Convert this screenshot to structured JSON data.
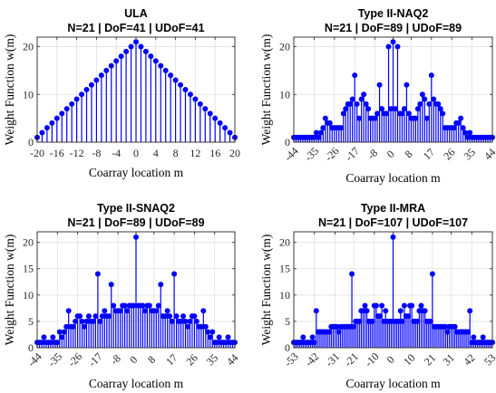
{
  "colors": {
    "stem": "#0000ff",
    "axis": "#262626",
    "grid": "#e0e0e0"
  },
  "chart_data": [
    {
      "type": "stem",
      "title": "ULA",
      "subtitle": "N=21 | DoF=41 | UDoF=41",
      "xlabel": "Coarray location m",
      "ylabel": "Weight Function w(m)",
      "xlim": [
        -20,
        20
      ],
      "ylim": [
        0,
        22
      ],
      "xticks": [
        -20,
        -16,
        -12,
        -8,
        -4,
        0,
        4,
        8,
        12,
        16,
        20
      ],
      "yticks": [
        0,
        10,
        20
      ],
      "grid": true,
      "x": [
        -20,
        -19,
        -18,
        -17,
        -16,
        -15,
        -14,
        -13,
        -12,
        -11,
        -10,
        -9,
        -8,
        -7,
        -6,
        -5,
        -4,
        -3,
        -2,
        -1,
        0,
        1,
        2,
        3,
        4,
        5,
        6,
        7,
        8,
        9,
        10,
        11,
        12,
        13,
        14,
        15,
        16,
        17,
        18,
        19,
        20
      ],
      "y": [
        1,
        2,
        3,
        4,
        5,
        6,
        7,
        8,
        9,
        10,
        11,
        12,
        13,
        14,
        15,
        16,
        17,
        18,
        19,
        20,
        21,
        20,
        19,
        18,
        17,
        16,
        15,
        14,
        13,
        12,
        11,
        10,
        9,
        8,
        7,
        6,
        5,
        4,
        3,
        2,
        1
      ]
    },
    {
      "type": "stem",
      "title": "Type II-NAQ2",
      "subtitle": "N=21 | DoF=89 | UDoF=89",
      "xlabel": "Coarray location m",
      "ylabel": "Weight Function w(m)",
      "xlim": [
        -44,
        44
      ],
      "ylim": [
        0,
        22
      ],
      "xticks": [
        -44,
        -35,
        -26,
        -17,
        -8,
        0,
        8,
        17,
        26,
        35,
        44
      ],
      "yticks": [
        0,
        10,
        20
      ],
      "grid": true,
      "x": [
        -44,
        -43,
        -42,
        -41,
        -40,
        -39,
        -38,
        -37,
        -36,
        -35,
        -34,
        -33,
        -32,
        -31,
        -30,
        -29,
        -28,
        -27,
        -26,
        -25,
        -24,
        -23,
        -22,
        -21,
        -20,
        -19,
        -18,
        -17,
        -16,
        -15,
        -14,
        -13,
        -12,
        -11,
        -10,
        -9,
        -8,
        -7,
        -6,
        -5,
        -4,
        -3,
        -2,
        -1,
        0,
        1,
        2,
        3,
        4,
        5,
        6,
        7,
        8,
        9,
        10,
        11,
        12,
        13,
        14,
        15,
        16,
        17,
        18,
        19,
        20,
        21,
        22,
        23,
        24,
        25,
        26,
        27,
        28,
        29,
        30,
        31,
        32,
        33,
        34,
        35,
        36,
        37,
        38,
        39,
        40,
        41,
        42,
        43,
        44
      ],
      "y": [
        1,
        1,
        1,
        1,
        1,
        1,
        1,
        1,
        1,
        1,
        2,
        1,
        2,
        3,
        5,
        4,
        4,
        3,
        3,
        3,
        3,
        3,
        6,
        7,
        8,
        8,
        9,
        14,
        8,
        5,
        9,
        10,
        8,
        7,
        5,
        5,
        5,
        6,
        12,
        7,
        6,
        6,
        20,
        7,
        21,
        7,
        20,
        6,
        6,
        7,
        12,
        6,
        5,
        5,
        5,
        7,
        8,
        10,
        9,
        5,
        8,
        14,
        9,
        8,
        8,
        7,
        6,
        3,
        3,
        3,
        3,
        3,
        4,
        4,
        5,
        3,
        2,
        1,
        2,
        1,
        1,
        1,
        1,
        1,
        1,
        1,
        1,
        1,
        1
      ]
    },
    {
      "type": "stem",
      "title": "Type II-SNAQ2",
      "subtitle": "N=21 | DoF=89 | UDoF=89",
      "xlabel": "Coarray location m",
      "ylabel": "Weight Function w(m)",
      "xlim": [
        -44,
        44
      ],
      "ylim": [
        0,
        22
      ],
      "xticks": [
        -44,
        -35,
        -26,
        -17,
        -8,
        0,
        8,
        17,
        26,
        35,
        44
      ],
      "yticks": [
        0,
        5,
        10,
        15,
        20
      ],
      "grid": true,
      "x": [
        -44,
        -43,
        -42,
        -41,
        -40,
        -39,
        -38,
        -37,
        -36,
        -35,
        -34,
        -33,
        -32,
        -31,
        -30,
        -29,
        -28,
        -27,
        -26,
        -25,
        -24,
        -23,
        -22,
        -21,
        -20,
        -19,
        -18,
        -17,
        -16,
        -15,
        -14,
        -13,
        -12,
        -11,
        -10,
        -9,
        -8,
        -7,
        -6,
        -5,
        -4,
        -3,
        -2,
        -1,
        0,
        1,
        2,
        3,
        4,
        5,
        6,
        7,
        8,
        9,
        10,
        11,
        12,
        13,
        14,
        15,
        16,
        17,
        18,
        19,
        20,
        21,
        22,
        23,
        24,
        25,
        26,
        27,
        28,
        29,
        30,
        31,
        32,
        33,
        34,
        35,
        36,
        37,
        38,
        39,
        40,
        41,
        42,
        43,
        44
      ],
      "y": [
        1,
        1,
        1,
        2,
        1,
        1,
        1,
        2,
        1,
        1,
        3,
        2,
        3,
        4,
        7,
        4,
        4,
        5,
        6,
        6,
        5,
        4,
        5,
        6,
        5,
        5,
        6,
        14,
        5,
        6,
        7,
        6,
        6,
        12,
        8,
        7,
        7,
        7,
        8,
        8,
        7,
        8,
        8,
        8,
        21,
        8,
        8,
        8,
        7,
        8,
        8,
        7,
        7,
        7,
        8,
        12,
        6,
        6,
        7,
        6,
        5,
        14,
        6,
        5,
        5,
        6,
        5,
        4,
        5,
        6,
        6,
        5,
        4,
        4,
        7,
        4,
        3,
        2,
        3,
        1,
        1,
        2,
        1,
        1,
        1,
        2,
        1,
        1,
        1
      ]
    },
    {
      "type": "stem",
      "title": "Type II-MRA",
      "subtitle": "N=21 | DoF=107 | UDoF=107",
      "xlabel": "Coarray location m",
      "ylabel": "Weight Function w(m)",
      "xlim": [
        -53,
        53
      ],
      "ylim": [
        0,
        22
      ],
      "xticks": [
        -53,
        -42,
        -31,
        -21,
        -10,
        0,
        10,
        21,
        31,
        42,
        53
      ],
      "yticks": [
        0,
        5,
        10,
        15,
        20
      ],
      "grid": true,
      "x": [
        -53,
        -52,
        -51,
        -50,
        -49,
        -48,
        -47,
        -46,
        -45,
        -44,
        -43,
        -42,
        -41,
        -40,
        -39,
        -38,
        -37,
        -36,
        -35,
        -34,
        -33,
        -32,
        -31,
        -30,
        -29,
        -28,
        -27,
        -26,
        -25,
        -24,
        -23,
        -22,
        -21,
        -20,
        -19,
        -18,
        -17,
        -16,
        -15,
        -14,
        -13,
        -12,
        -11,
        -10,
        -9,
        -8,
        -7,
        -6,
        -5,
        -4,
        -3,
        -2,
        -1,
        0,
        1,
        2,
        3,
        4,
        5,
        6,
        7,
        8,
        9,
        10,
        11,
        12,
        13,
        14,
        15,
        16,
        17,
        18,
        19,
        20,
        21,
        22,
        23,
        24,
        25,
        26,
        27,
        28,
        29,
        30,
        31,
        32,
        33,
        34,
        35,
        36,
        37,
        38,
        39,
        40,
        41,
        42,
        43,
        44,
        45,
        46,
        47,
        48,
        49,
        50,
        51,
        52,
        53
      ],
      "y": [
        1,
        1,
        1,
        1,
        1,
        2,
        1,
        1,
        1,
        1,
        2,
        1,
        7,
        3,
        3,
        3,
        3,
        3,
        3,
        3,
        4,
        4,
        4,
        4,
        3,
        4,
        4,
        4,
        4,
        4,
        4,
        14,
        4,
        5,
        5,
        5,
        7,
        7,
        8,
        7,
        5,
        5,
        5,
        8,
        8,
        6,
        6,
        8,
        5,
        7,
        5,
        5,
        5,
        21,
        5,
        5,
        5,
        7,
        5,
        8,
        6,
        6,
        8,
        8,
        5,
        5,
        5,
        7,
        8,
        7,
        7,
        5,
        5,
        5,
        14,
        4,
        4,
        4,
        4,
        4,
        4,
        4,
        3,
        4,
        4,
        4,
        4,
        3,
        3,
        3,
        3,
        3,
        3,
        3,
        7,
        1,
        2,
        1,
        1,
        1,
        1,
        2,
        1,
        1,
        1,
        1,
        1
      ]
    }
  ]
}
